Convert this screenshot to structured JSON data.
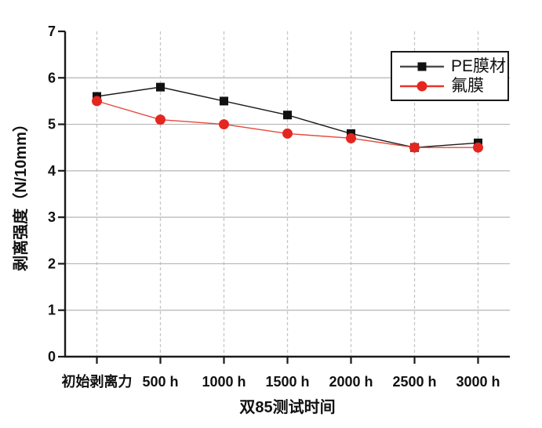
{
  "chart_data": {
    "type": "line",
    "title": "",
    "categories": [
      "初始剥离力",
      "500 h",
      "1000 h",
      "1500 h",
      "2000 h",
      "2500 h",
      "3000 h"
    ],
    "series": [
      {
        "id": "pe-film",
        "name": "PE膜材",
        "marker": "square",
        "color": "#111111",
        "line_color": "#1a1a1a",
        "legend_line_color": "#4d4d4d",
        "values": [
          5.6,
          5.8,
          5.5,
          5.2,
          4.8,
          4.5,
          4.6
        ]
      },
      {
        "id": "fluoro-film",
        "name": "氟膜",
        "marker": "circle",
        "color": "#e52620",
        "line_color": "#e6483c",
        "legend_line_color": "#e6362a",
        "values": [
          5.5,
          5.1,
          5.0,
          4.8,
          4.7,
          4.5,
          4.5
        ]
      }
    ],
    "xlabel": "双85测试时间",
    "ylabel": "剥离强度（N/10mm）",
    "ylim": [
      0,
      7
    ],
    "yticks": [
      0,
      1,
      2,
      3,
      4,
      5,
      6,
      7
    ],
    "grid": {
      "horizontal": "solid",
      "vertical": "dashed"
    },
    "legend_position": "top-right"
  },
  "colors": {
    "background": "#ffffff",
    "axis": "#1a1a1a",
    "grid_solid": "#b5b5b5",
    "grid_dashed": "#c7c7c7",
    "legend_border": "#1a1a1a",
    "text": "#111111"
  }
}
